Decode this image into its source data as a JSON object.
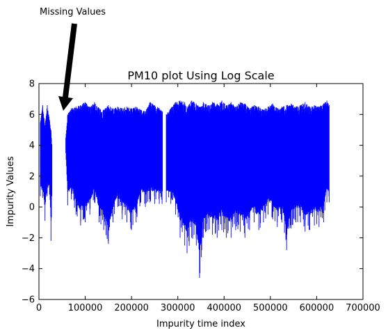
{
  "chart_data": {
    "type": "line",
    "title": "PM10 plot Using Log  Scale",
    "xlabel": "Impurity time index",
    "ylabel": "Impurity Values",
    "xlim": [
      0,
      700000
    ],
    "ylim": [
      -6,
      8
    ],
    "xticks": [
      0,
      100000,
      200000,
      300000,
      400000,
      500000,
      600000,
      700000
    ],
    "yticks": [
      -6,
      -4,
      -2,
      0,
      2,
      4,
      6,
      8
    ],
    "xtick_labels": [
      "0",
      "100000",
      "200000",
      "300000",
      "400000",
      "500000",
      "600000",
      "700000"
    ],
    "ytick_labels": [
      "−6",
      "−4",
      "−2",
      "0",
      "2",
      "4",
      "6",
      "8"
    ],
    "grid": false,
    "series": [
      {
        "color": "#0000ff",
        "segments": [
          {
            "x_start": 3000,
            "x_end": 28000,
            "envelope": [
              {
                "x": 3000,
                "min": 0.7,
                "max": 5.5
              },
              {
                "x": 8000,
                "min": 0.6,
                "max": 6.6
              },
              {
                "x": 13000,
                "min": -0.9,
                "max": 5.3
              },
              {
                "x": 18000,
                "min": 0.7,
                "max": 6.6
              },
              {
                "x": 23000,
                "min": 0.8,
                "max": 5.6
              },
              {
                "x": 26000,
                "min": -2.2,
                "max": 5.0
              },
              {
                "x": 28000,
                "min": 0.7,
                "max": 4.0
              }
            ]
          },
          {
            "x_start": 58000,
            "x_end": 627000,
            "envelope": [
              {
                "x": 58000,
                "min": 3.5,
                "max": 4.5
              },
              {
                "x": 62000,
                "min": 0.1,
                "max": 6.0
              },
              {
                "x": 70000,
                "min": 0.5,
                "max": 6.4
              },
              {
                "x": 80000,
                "min": -0.5,
                "max": 6.5
              },
              {
                "x": 90000,
                "min": -1.2,
                "max": 6.6
              },
              {
                "x": 100000,
                "min": -1.0,
                "max": 6.8
              },
              {
                "x": 110000,
                "min": -0.5,
                "max": 6.5
              },
              {
                "x": 120000,
                "min": 0.3,
                "max": 6.8
              },
              {
                "x": 130000,
                "min": -1.0,
                "max": 6.4
              },
              {
                "x": 140000,
                "min": -1.5,
                "max": 6.3
              },
              {
                "x": 150000,
                "min": -2.4,
                "max": 6.6
              },
              {
                "x": 160000,
                "min": -1.0,
                "max": 6.4
              },
              {
                "x": 170000,
                "min": 0.0,
                "max": 6.5
              },
              {
                "x": 180000,
                "min": -0.8,
                "max": 6.4
              },
              {
                "x": 190000,
                "min": -1.0,
                "max": 6.5
              },
              {
                "x": 200000,
                "min": -1.5,
                "max": 6.4
              },
              {
                "x": 210000,
                "min": -1.0,
                "max": 6.5
              },
              {
                "x": 220000,
                "min": 0.3,
                "max": 6.3
              },
              {
                "x": 230000,
                "min": 0.0,
                "max": 6.2
              },
              {
                "x": 240000,
                "min": 0.3,
                "max": 6.8
              },
              {
                "x": 250000,
                "min": 0.2,
                "max": 6.6
              },
              {
                "x": 260000,
                "min": 0.2,
                "max": 6.4
              },
              {
                "x": 266000,
                "min": 0.2,
                "max": 6.2
              },
              {
                "x": 275000,
                "min": 0.3,
                "max": 6.0
              },
              {
                "x": 285000,
                "min": 0.2,
                "max": 6.4
              },
              {
                "x": 295000,
                "min": -0.5,
                "max": 6.8
              },
              {
                "x": 305000,
                "min": -2.0,
                "max": 6.9
              },
              {
                "x": 315000,
                "min": -2.5,
                "max": 6.8
              },
              {
                "x": 320000,
                "min": -3.0,
                "max": 6.5
              },
              {
                "x": 330000,
                "min": -2.0,
                "max": 6.9
              },
              {
                "x": 340000,
                "min": -2.5,
                "max": 6.7
              },
              {
                "x": 347000,
                "min": -4.6,
                "max": 6.5
              },
              {
                "x": 355000,
                "min": -2.0,
                "max": 6.8
              },
              {
                "x": 365000,
                "min": -1.5,
                "max": 6.6
              },
              {
                "x": 375000,
                "min": -1.8,
                "max": 6.8
              },
              {
                "x": 385000,
                "min": -2.0,
                "max": 6.7
              },
              {
                "x": 395000,
                "min": -1.5,
                "max": 6.9
              },
              {
                "x": 405000,
                "min": -2.0,
                "max": 6.6
              },
              {
                "x": 415000,
                "min": -2.0,
                "max": 6.8
              },
              {
                "x": 425000,
                "min": -1.5,
                "max": 6.5
              },
              {
                "x": 435000,
                "min": -1.6,
                "max": 6.8
              },
              {
                "x": 445000,
                "min": -2.0,
                "max": 6.7
              },
              {
                "x": 455000,
                "min": -1.5,
                "max": 6.4
              },
              {
                "x": 465000,
                "min": -1.0,
                "max": 6.6
              },
              {
                "x": 475000,
                "min": -1.5,
                "max": 6.5
              },
              {
                "x": 485000,
                "min": -1.0,
                "max": 6.3
              },
              {
                "x": 495000,
                "min": -0.5,
                "max": 6.5
              },
              {
                "x": 505000,
                "min": -0.8,
                "max": 6.7
              },
              {
                "x": 515000,
                "min": -1.3,
                "max": 6.4
              },
              {
                "x": 525000,
                "min": -1.0,
                "max": 6.5
              },
              {
                "x": 535000,
                "min": -2.8,
                "max": 6.6
              },
              {
                "x": 545000,
                "min": -1.4,
                "max": 6.7
              },
              {
                "x": 555000,
                "min": -1.0,
                "max": 6.5
              },
              {
                "x": 565000,
                "min": -1.0,
                "max": 6.6
              },
              {
                "x": 575000,
                "min": -1.6,
                "max": 6.8
              },
              {
                "x": 585000,
                "min": -1.5,
                "max": 6.5
              },
              {
                "x": 595000,
                "min": -1.2,
                "max": 6.6
              },
              {
                "x": 605000,
                "min": -1.3,
                "max": 6.5
              },
              {
                "x": 615000,
                "min": -1.0,
                "max": 6.7
              },
              {
                "x": 622000,
                "min": 0.3,
                "max": 6.9
              },
              {
                "x": 627000,
                "min": 0.3,
                "max": 6.6
              }
            ],
            "gap": {
              "x_start": 267000,
              "x_end": 275000
            }
          }
        ]
      }
    ],
    "annotations": [
      {
        "text": "Missing Values",
        "arrow_to": {
          "x": 50000,
          "y": 6.2
        }
      }
    ]
  }
}
